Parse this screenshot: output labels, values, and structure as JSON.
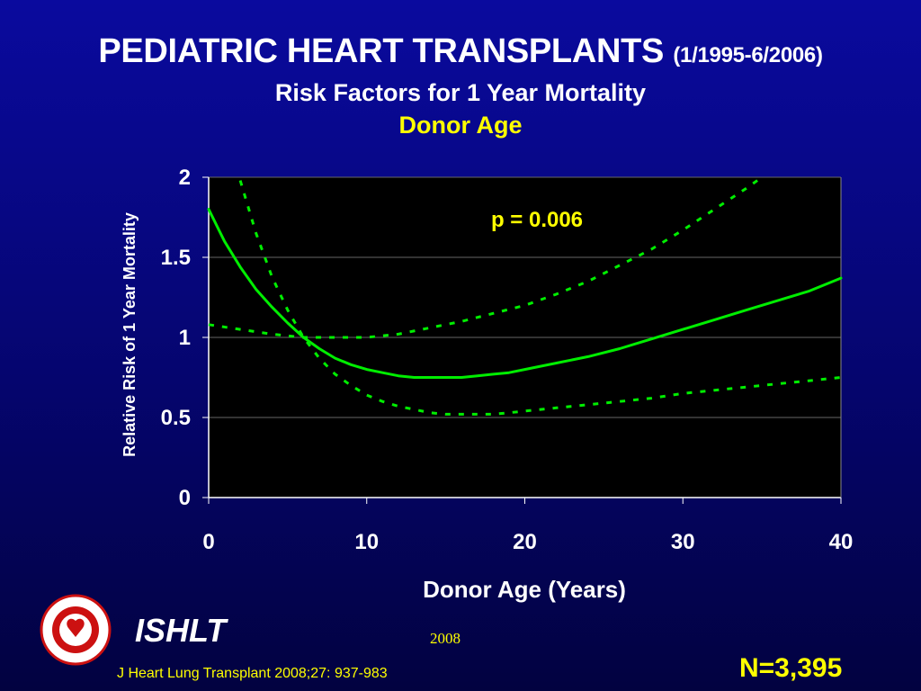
{
  "slide": {
    "title_main": "PEDIATRIC HEART TRANSPLANTS",
    "title_range": "(1/1995-6/2006)",
    "subtitle": "Risk Factors for 1 Year Mortality",
    "subtitle2": "Donor Age"
  },
  "footer": {
    "org": "ISHLT",
    "year": "2008",
    "citation": "J Heart Lung Transplant 2008;27: 937-983",
    "n": "N=3,395"
  },
  "chart_data": {
    "type": "line",
    "xlabel": "Donor Age (Years)",
    "ylabel": "Relative Risk of 1 Year Mortality",
    "xlim": [
      0,
      40
    ],
    "ylim": [
      0,
      2
    ],
    "x_ticks": [
      "0",
      "10",
      "20",
      "30",
      "40"
    ],
    "y_ticks": [
      "0",
      "0.5",
      "1",
      "1.5",
      "2"
    ],
    "grid": true,
    "annotation": "p = 0.006",
    "colors": {
      "line": "#00ee00",
      "plot_bg": "#000000",
      "axis": "#ffffff",
      "annotation": "#ffff00"
    },
    "series": [
      {
        "style": "solid",
        "x": [
          0,
          1,
          2,
          3,
          4,
          5,
          6,
          7,
          8,
          9,
          10,
          11,
          12,
          13,
          14,
          15,
          16,
          17,
          18,
          19,
          20,
          22,
          24,
          26,
          28,
          30,
          32,
          34,
          36,
          38,
          40
        ],
        "y": [
          1.8,
          1.6,
          1.44,
          1.3,
          1.19,
          1.09,
          1.0,
          0.93,
          0.87,
          0.83,
          0.8,
          0.78,
          0.76,
          0.75,
          0.75,
          0.75,
          0.75,
          0.76,
          0.77,
          0.78,
          0.8,
          0.84,
          0.88,
          0.93,
          0.99,
          1.05,
          1.11,
          1.17,
          1.23,
          1.29,
          1.37
        ]
      },
      {
        "style": "dashed",
        "x": [
          2,
          3,
          4,
          5,
          6,
          7,
          8,
          9,
          10,
          11,
          12,
          13,
          14,
          15,
          16,
          17,
          18,
          19,
          20,
          22,
          24,
          26,
          28,
          30,
          32,
          34,
          36,
          38,
          40
        ],
        "y": [
          1.98,
          1.65,
          1.38,
          1.17,
          1.0,
          0.87,
          0.77,
          0.7,
          0.64,
          0.6,
          0.57,
          0.55,
          0.53,
          0.52,
          0.52,
          0.52,
          0.52,
          0.53,
          0.54,
          0.56,
          0.58,
          0.6,
          0.62,
          0.65,
          0.67,
          0.69,
          0.71,
          0.73,
          0.75
        ]
      },
      {
        "style": "dashed",
        "x": [
          0,
          2,
          4,
          6,
          8,
          10,
          12,
          14,
          16,
          18,
          20,
          22,
          24,
          26,
          28,
          30,
          32,
          34,
          35
        ],
        "y": [
          1.08,
          1.05,
          1.02,
          1.0,
          1.0,
          1.0,
          1.02,
          1.06,
          1.1,
          1.15,
          1.2,
          1.27,
          1.35,
          1.45,
          1.55,
          1.67,
          1.8,
          1.93,
          2.0
        ]
      }
    ]
  }
}
